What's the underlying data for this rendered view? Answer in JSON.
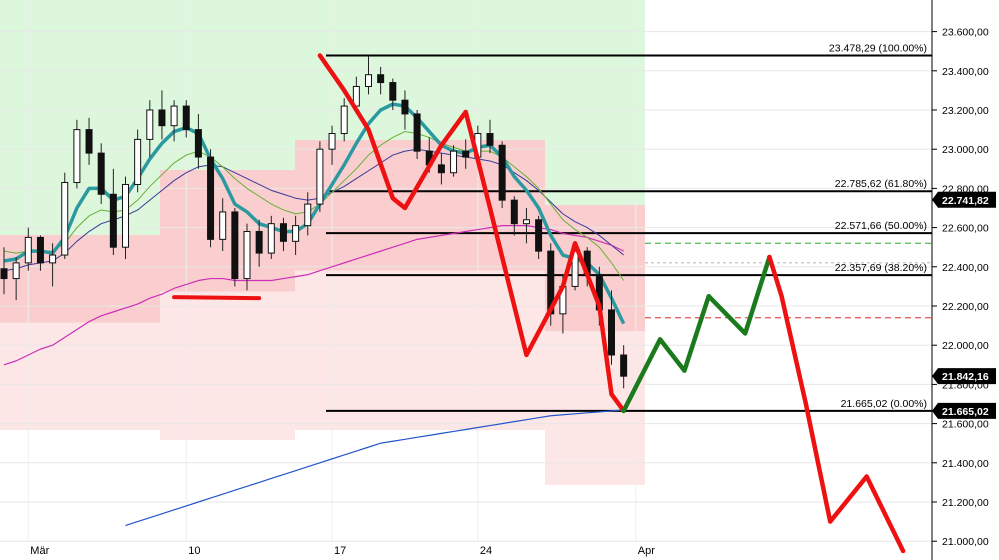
{
  "chart_data": {
    "type": "line",
    "instrument_note": "",
    "y_axis": {
      "position": "right",
      "ylim": [
        20950,
        23700
      ],
      "ticks": [
        {
          "value": 21000,
          "label": "21.000,00"
        },
        {
          "value": 21200,
          "label": "21.200,00"
        },
        {
          "value": 21400,
          "label": "21.400,00"
        },
        {
          "value": 21600,
          "label": "21.600,00"
        },
        {
          "value": 21800,
          "label": "21.800,00"
        },
        {
          "value": 22000,
          "label": "22.000,00"
        },
        {
          "value": 22200,
          "label": "22.200,00"
        },
        {
          "value": 22400,
          "label": "22.400,00"
        },
        {
          "value": 22600,
          "label": "22.600,00"
        },
        {
          "value": 22800,
          "label": "22.800,00"
        },
        {
          "value": 23000,
          "label": "23.000,00"
        },
        {
          "value": 23200,
          "label": "23.200,00"
        },
        {
          "value": 23400,
          "label": "23.400,00"
        },
        {
          "value": 23600,
          "label": "23.600,00"
        }
      ]
    },
    "x_axis": {
      "xlim": [
        0,
        66
      ],
      "ticks": [
        {
          "x": 2,
          "label": "Mär"
        },
        {
          "x": 15,
          "label": "10"
        },
        {
          "x": 27,
          "label": "17"
        },
        {
          "x": 39,
          "label": "24"
        },
        {
          "x": 52,
          "label": "Apr"
        }
      ]
    },
    "fibonacci": [
      {
        "value": 23478.29,
        "label": "23.478,29 (100.00%)"
      },
      {
        "value": 22785.62,
        "label": "22.785,62 (61.80%)"
      },
      {
        "value": 22571.66,
        "label": "22.571,66 (50.00%)"
      },
      {
        "value": 22357.69,
        "label": "22.357,69 (38.20%)"
      },
      {
        "value": 21665.02,
        "label": "21.665,02 (0.00%)"
      }
    ],
    "price_tags": [
      {
        "value": 22741.82,
        "label": "22.741,82"
      },
      {
        "value": 21842.16,
        "label": "21.842,16"
      },
      {
        "value": 21665.02,
        "label": "21.665,02"
      }
    ],
    "candles_start_x": 0,
    "candles": [
      [
        22390,
        22500,
        22260,
        22340
      ],
      [
        22340,
        22450,
        22230,
        22420
      ],
      [
        22420,
        22600,
        22380,
        22550
      ],
      [
        22550,
        22560,
        22380,
        22420
      ],
      [
        22420,
        22520,
        22300,
        22460
      ],
      [
        22460,
        22880,
        22440,
        22830
      ],
      [
        22830,
        23150,
        22800,
        23100
      ],
      [
        23100,
        23160,
        22920,
        22980
      ],
      [
        22980,
        23030,
        22720,
        22770
      ],
      [
        22770,
        22900,
        22460,
        22500
      ],
      [
        22500,
        22860,
        22440,
        22820
      ],
      [
        22820,
        23100,
        22780,
        23050
      ],
      [
        23050,
        23250,
        22960,
        23200
      ],
      [
        23200,
        23300,
        23050,
        23120
      ],
      [
        23120,
        23250,
        23040,
        23220
      ],
      [
        23220,
        23250,
        23060,
        23100
      ],
      [
        23100,
        23180,
        22900,
        22960
      ],
      [
        22960,
        23000,
        22500,
        22540
      ],
      [
        22540,
        22750,
        22480,
        22680
      ],
      [
        22680,
        22700,
        22300,
        22340
      ],
      [
        22340,
        22620,
        22280,
        22580
      ],
      [
        22580,
        22640,
        22400,
        22470
      ],
      [
        22470,
        22660,
        22440,
        22620
      ],
      [
        22620,
        22650,
        22480,
        22530
      ],
      [
        22530,
        22660,
        22460,
        22610
      ],
      [
        22610,
        22780,
        22560,
        22720
      ],
      [
        22720,
        23040,
        22680,
        23000
      ],
      [
        23000,
        23120,
        22920,
        23080
      ],
      [
        23080,
        23260,
        23040,
        23220
      ],
      [
        23220,
        23370,
        23180,
        23320
      ],
      [
        23320,
        23478,
        23280,
        23380
      ],
      [
        23380,
        23420,
        23280,
        23340
      ],
      [
        23340,
        23360,
        23200,
        23250
      ],
      [
        23250,
        23300,
        23100,
        23180
      ],
      [
        23180,
        23200,
        22950,
        22990
      ],
      [
        22990,
        23060,
        22880,
        22920
      ],
      [
        22920,
        22980,
        22820,
        22880
      ],
      [
        22880,
        23020,
        22860,
        22990
      ],
      [
        22990,
        23050,
        22900,
        22960
      ],
      [
        22960,
        23120,
        22940,
        23080
      ],
      [
        23080,
        23150,
        22980,
        23020
      ],
      [
        23020,
        23040,
        22700,
        22740
      ],
      [
        22740,
        22760,
        22560,
        22620
      ],
      [
        22620,
        22700,
        22520,
        22640
      ],
      [
        22640,
        22660,
        22440,
        22480
      ],
      [
        22480,
        22520,
        22100,
        22160
      ],
      [
        22160,
        22360,
        22060,
        22300
      ],
      [
        22300,
        22520,
        22280,
        22480
      ],
      [
        22480,
        22500,
        22300,
        22360
      ],
      [
        22360,
        22400,
        22100,
        22180
      ],
      [
        22180,
        22280,
        21900,
        21950
      ],
      [
        21950,
        22000,
        21780,
        21842
      ]
    ],
    "ema_fast_label": "",
    "ema_fast": [
      22430,
      22440,
      22480,
      22480,
      22470,
      22550,
      22700,
      22800,
      22800,
      22740,
      22760,
      22850,
      22950,
      23030,
      23090,
      23110,
      23080,
      22950,
      22850,
      22720,
      22680,
      22620,
      22600,
      22580,
      22580,
      22620,
      22720,
      22820,
      22920,
      23030,
      23130,
      23200,
      23230,
      23220,
      23160,
      23090,
      23020,
      22990,
      22980,
      23010,
      23020,
      22960,
      22860,
      22790,
      22700,
      22560,
      22460,
      22440,
      22420,
      22360,
      22240,
      22110
    ],
    "ema_slow": [
      22480,
      22470,
      22480,
      22480,
      22480,
      22520,
      22600,
      22660,
      22690,
      22680,
      22690,
      22740,
      22810,
      22870,
      22930,
      22970,
      22990,
      22960,
      22910,
      22850,
      22800,
      22760,
      22720,
      22690,
      22670,
      22680,
      22720,
      22780,
      22840,
      22900,
      22970,
      23020,
      23060,
      23090,
      23080,
      23060,
      23030,
      23010,
      22990,
      22990,
      22990,
      22960,
      22910,
      22860,
      22800,
      22720,
      22640,
      22590,
      22550,
      22500,
      22420,
      22330
    ],
    "sma_mid": [
      22380,
      22390,
      22410,
      22420,
      22430,
      22470,
      22530,
      22580,
      22620,
      22640,
      22660,
      22690,
      22740,
      22790,
      22840,
      22880,
      22910,
      22920,
      22910,
      22880,
      22850,
      22820,
      22790,
      22770,
      22750,
      22740,
      22750,
      22780,
      22810,
      22850,
      22890,
      22930,
      22970,
      22990,
      23000,
      22990,
      22980,
      22970,
      22960,
      22950,
      22940,
      22920,
      22880,
      22840,
      22790,
      22730,
      22670,
      22630,
      22600,
      22560,
      22510,
      22460
    ],
    "sma_long": [
      21900,
      21920,
      21950,
      21980,
      22000,
      22040,
      22080,
      22120,
      22150,
      22170,
      22190,
      22210,
      22240,
      22260,
      22290,
      22310,
      22330,
      22340,
      22340,
      22330,
      22330,
      22330,
      22330,
      22340,
      22350,
      22360,
      22380,
      22400,
      22420,
      22440,
      22460,
      22480,
      22500,
      22520,
      22540,
      22550,
      22560,
      22570,
      22580,
      22590,
      22600,
      22610,
      22610,
      22610,
      22600,
      22590,
      22570,
      22560,
      22550,
      22530,
      22510,
      22480
    ],
    "sma_200": [
      null,
      null,
      null,
      null,
      null,
      null,
      null,
      null,
      null,
      null,
      21080,
      21100,
      21120,
      21140,
      21160,
      21180,
      21200,
      21220,
      21240,
      21260,
      21280,
      21300,
      21320,
      21340,
      21360,
      21380,
      21400,
      21420,
      21440,
      21460,
      21480,
      21500,
      21510,
      21520,
      21530,
      21540,
      21550,
      21560,
      21570,
      21580,
      21590,
      21600,
      21610,
      21620,
      21630,
      21640,
      21645,
      21650,
      21655,
      21660,
      21665,
      21670
    ],
    "drawings": {
      "red_path": [
        [
          26,
          23478
        ],
        [
          28,
          23300
        ],
        [
          30,
          23100
        ],
        [
          32,
          22750
        ],
        [
          33,
          22700
        ],
        [
          36,
          23020
        ],
        [
          38,
          23190
        ],
        [
          40,
          22700
        ],
        [
          42,
          22200
        ],
        [
          43,
          21950
        ],
        [
          46,
          22300
        ],
        [
          47,
          22520
        ],
        [
          49,
          22200
        ],
        [
          50,
          21750
        ],
        [
          51,
          21665
        ]
      ],
      "red_short": [
        [
          14,
          22245
        ],
        [
          21,
          22240
        ]
      ],
      "green_path": [
        [
          51,
          21665
        ],
        [
          54,
          22030
        ],
        [
          56,
          21870
        ],
        [
          58,
          22250
        ],
        [
          61,
          22060
        ],
        [
          63,
          22450
        ]
      ],
      "red_forecast": [
        [
          63,
          22450
        ],
        [
          64,
          22250
        ],
        [
          66,
          21700
        ],
        [
          68,
          21100
        ],
        [
          71,
          21330
        ],
        [
          74,
          20950
        ]
      ]
    },
    "legend": ""
  }
}
